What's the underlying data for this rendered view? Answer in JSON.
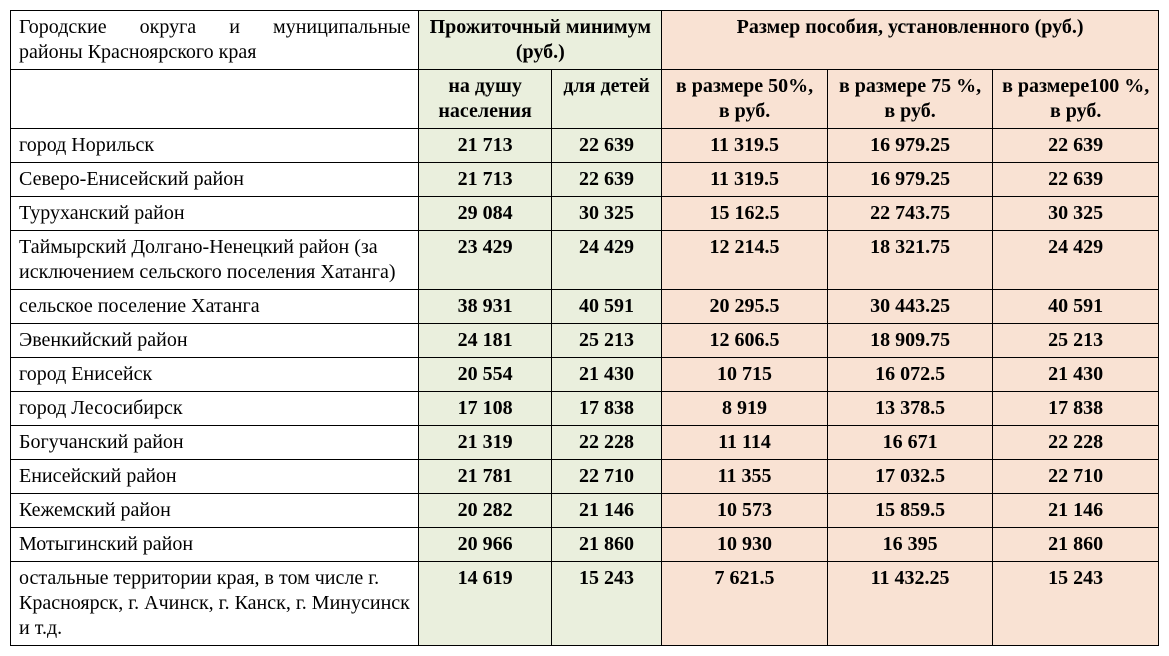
{
  "table": {
    "header": {
      "name_top_line1": "Городские округа и муниципальные",
      "name_top_line2": "районы Красноярского края",
      "minimum_top": "Прожиточный минимум (руб.)",
      "benefit_top": "Размер пособия, установленного (руб.)",
      "sub_min1": "на душу населения",
      "sub_min2": "для детей",
      "sub_b1": "в размере 50%, в руб.",
      "sub_b2": "в размере 75 %, в руб.",
      "sub_b3": "в размере100 %, в руб."
    },
    "rows": [
      {
        "name": "город Норильск",
        "min1": "21 713",
        "min2": "22 639",
        "b1": "11 319.5",
        "b2": "16 979.25",
        "b3": "22 639"
      },
      {
        "name": "Северо-Енисейский район",
        "min1": "21 713",
        "min2": "22 639",
        "b1": "11 319.5",
        "b2": "16 979.25",
        "b3": "22 639"
      },
      {
        "name": "Туруханский район",
        "min1": "29 084",
        "min2": "30 325",
        "b1": "15 162.5",
        "b2": "22 743.75",
        "b3": "30 325"
      },
      {
        "name": "Таймырский Долгано-Ненецкий район (за исключением сельского поселения Хатанга)",
        "min1": "23 429",
        "min2": "24 429",
        "b1": "12 214.5",
        "b2": "18 321.75",
        "b3": "24 429"
      },
      {
        "name": "сельское поселение Хатанга",
        "min1": "38 931",
        "min2": "40 591",
        "b1": "20 295.5",
        "b2": "30 443.25",
        "b3": "40 591"
      },
      {
        "name": "Эвенкийский район",
        "min1": "24 181",
        "min2": "25 213",
        "b1": "12 606.5",
        "b2": "18 909.75",
        "b3": "25 213"
      },
      {
        "name": "город Енисейск",
        "min1": "20 554",
        "min2": "21 430",
        "b1": "10 715",
        "b2": "16 072.5",
        "b3": "21 430"
      },
      {
        "name": "город Лесосибирск",
        "min1": "17 108",
        "min2": "17 838",
        "b1": "8 919",
        "b2": "13 378.5",
        "b3": "17 838"
      },
      {
        "name": "Богучанский район",
        "min1": "21 319",
        "min2": "22 228",
        "b1": "11 114",
        "b2": "16 671",
        "b3": "22 228"
      },
      {
        "name": "Енисейский район",
        "min1": "21 781",
        "min2": "22 710",
        "b1": "11 355",
        "b2": "17 032.5",
        "b3": "22 710"
      },
      {
        "name": "Кежемский район",
        "min1": "20 282",
        "min2": "21 146",
        "b1": "10 573",
        "b2": "15 859.5",
        "b3": "21 146"
      },
      {
        "name": "Мотыгинский район",
        "min1": "20 966",
        "min2": "21 860",
        "b1": "10 930",
        "b2": "16 395",
        "b3": "21 860"
      },
      {
        "name": "остальные территории края, в том числе г. Красноярск, г. Ачинск, г. Канск, г. Минусинск и т.д.",
        "min1": "14 619",
        "min2": "15 243",
        "b1": "7 621.5",
        "b2": "11 432.25",
        "b3": "15 243"
      }
    ]
  },
  "colors": {
    "min_bg": "#eaefdd",
    "benefit_bg": "#f9e2d3",
    "border": "#000000",
    "background": "#ffffff"
  }
}
